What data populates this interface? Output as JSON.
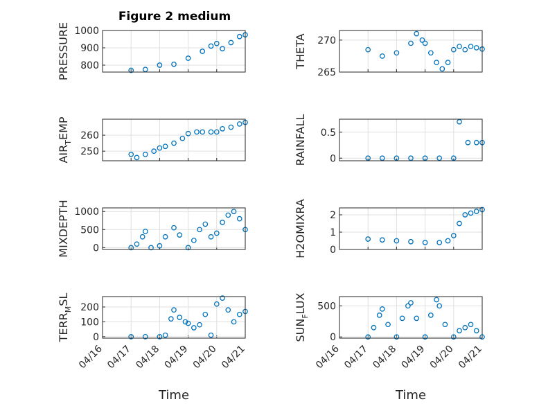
{
  "figure": {
    "title": "Figure 2 medium",
    "marker_color": "#0072BD"
  },
  "time_axis": {
    "range": [
      "04/16",
      "04/21"
    ],
    "ticks": [
      "04/16",
      "04/17",
      "04/18",
      "04/19",
      "04/20",
      "04/21"
    ],
    "label": "Time"
  },
  "chart_data": [
    {
      "type": "scatter",
      "name": "pressure",
      "ylabel": "PRESSURE",
      "ylim": [
        760,
        1000
      ],
      "yticks": [
        {
          "v": 800,
          "t": "800"
        },
        {
          "v": 900,
          "t": "900"
        },
        {
          "v": 1000,
          "t": "1000"
        }
      ],
      "series": [
        {
          "x": [
            1.0,
            1.5,
            2.0,
            2.5,
            3.0,
            3.5,
            3.8,
            4.0,
            4.2,
            4.5,
            4.8,
            5.0
          ],
          "y": [
            770,
            775,
            800,
            805,
            840,
            880,
            910,
            925,
            895,
            930,
            965,
            975
          ]
        }
      ]
    },
    {
      "type": "scatter",
      "name": "theta",
      "ylabel": "THETA",
      "ylim": [
        265,
        271.5
      ],
      "yticks": [
        {
          "v": 265,
          "t": "265"
        },
        {
          "v": 270,
          "t": "270"
        }
      ],
      "series": [
        {
          "x": [
            1.0,
            1.5,
            2.0,
            2.5,
            2.7,
            2.9,
            3.0,
            3.2,
            3.4,
            3.6,
            3.8,
            4.0,
            4.2,
            4.4,
            4.6,
            4.8,
            5.0
          ],
          "y": [
            268.5,
            267.5,
            268.0,
            269.5,
            271.0,
            270.0,
            269.5,
            268.0,
            266.5,
            265.5,
            266.5,
            268.5,
            269.0,
            268.5,
            269.0,
            268.8,
            268.6
          ]
        }
      ]
    },
    {
      "type": "scatter",
      "name": "air_temp",
      "ylabel": "AIR",
      "ylabel_sub": "T",
      "ylabel_tail": "EMP",
      "ylim": [
        244,
        270
      ],
      "yticks": [
        {
          "v": 250,
          "t": "250"
        },
        {
          "v": 260,
          "t": "260"
        }
      ],
      "series": [
        {
          "x": [
            1.0,
            1.2,
            1.5,
            1.8,
            2.0,
            2.2,
            2.5,
            2.8,
            3.0,
            3.3,
            3.5,
            3.8,
            4.0,
            4.2,
            4.5,
            4.8,
            5.0
          ],
          "y": [
            248,
            246,
            248,
            250,
            252,
            253,
            255,
            258,
            261,
            262,
            262,
            262,
            262,
            264,
            265,
            267,
            268
          ]
        }
      ]
    },
    {
      "type": "scatter",
      "name": "rainfall",
      "ylabel": "RAINFALL",
      "ylim": [
        -0.05,
        0.75
      ],
      "yticks": [
        {
          "v": 0,
          "t": "0"
        },
        {
          "v": 0.5,
          "t": "0.5"
        }
      ],
      "series": [
        {
          "x": [
            1.0,
            1.5,
            2.0,
            2.5,
            3.0,
            3.5,
            4.0,
            4.2,
            4.5,
            4.8,
            5.0
          ],
          "y": [
            0,
            0,
            0,
            0,
            0,
            0,
            0,
            0.7,
            0.3,
            0.3,
            0.3
          ]
        }
      ]
    },
    {
      "type": "scatter",
      "name": "mixdepth",
      "ylabel": "MIXDEPTH",
      "ylim": [
        -50,
        1100
      ],
      "yticks": [
        {
          "v": 0,
          "t": "0"
        },
        {
          "v": 500,
          "t": "500"
        },
        {
          "v": 1000,
          "t": "1000"
        }
      ],
      "series": [
        {
          "x": [
            1.0,
            1.2,
            1.4,
            1.5,
            1.7,
            2.0,
            2.2,
            2.5,
            2.7,
            3.0,
            3.2,
            3.4,
            3.6,
            3.8,
            4.0,
            4.2,
            4.4,
            4.6,
            4.8,
            5.0
          ],
          "y": [
            0,
            100,
            300,
            450,
            0,
            50,
            300,
            550,
            350,
            0,
            200,
            500,
            650,
            300,
            400,
            700,
            900,
            1000,
            800,
            500
          ]
        }
      ]
    },
    {
      "type": "scatter",
      "name": "h2omixra",
      "ylabel": "H2OMIXRA",
      "ylim": [
        0,
        2.4
      ],
      "yticks": [
        {
          "v": 0,
          "t": "0"
        },
        {
          "v": 1,
          "t": "1"
        },
        {
          "v": 2,
          "t": "2"
        }
      ],
      "series": [
        {
          "x": [
            1.0,
            1.5,
            2.0,
            2.5,
            3.0,
            3.5,
            3.8,
            4.0,
            4.2,
            4.4,
            4.6,
            4.8,
            5.0
          ],
          "y": [
            0.6,
            0.55,
            0.5,
            0.45,
            0.4,
            0.4,
            0.5,
            0.8,
            1.5,
            2.0,
            2.1,
            2.2,
            2.3
          ]
        }
      ]
    },
    {
      "type": "scatter",
      "name": "terr_msl",
      "ylabel": "TERR",
      "ylabel_sub": "M",
      "ylabel_tail": "SL",
      "ylim": [
        -10,
        270
      ],
      "yticks": [
        {
          "v": 0,
          "t": "0"
        },
        {
          "v": 100,
          "t": "100"
        },
        {
          "v": 200,
          "t": "200"
        }
      ],
      "series": [
        {
          "x": [
            1.0,
            1.5,
            2.0,
            2.2,
            2.4,
            2.5,
            2.7,
            2.9,
            3.0,
            3.2,
            3.4,
            3.6,
            3.8,
            4.0,
            4.2,
            4.4,
            4.6,
            4.8,
            5.0
          ],
          "y": [
            0,
            0,
            0,
            10,
            120,
            180,
            130,
            100,
            90,
            60,
            80,
            150,
            10,
            220,
            260,
            180,
            100,
            150,
            170
          ]
        }
      ]
    },
    {
      "type": "scatter",
      "name": "sun_flux",
      "ylabel": "SUN",
      "ylabel_sub": "F",
      "ylabel_tail": "LUX",
      "ylim": [
        -20,
        650
      ],
      "yticks": [
        {
          "v": 0,
          "t": "0"
        },
        {
          "v": 500,
          "t": "500"
        }
      ],
      "series": [
        {
          "x": [
            1.0,
            1.2,
            1.4,
            1.5,
            1.7,
            2.0,
            2.2,
            2.4,
            2.5,
            2.7,
            3.0,
            3.2,
            3.4,
            3.5,
            3.7,
            4.0,
            4.2,
            4.4,
            4.6,
            4.8,
            5.0
          ],
          "y": [
            0,
            150,
            350,
            450,
            200,
            0,
            300,
            500,
            550,
            300,
            0,
            350,
            600,
            500,
            200,
            0,
            100,
            150,
            200,
            100,
            0
          ]
        }
      ]
    }
  ]
}
